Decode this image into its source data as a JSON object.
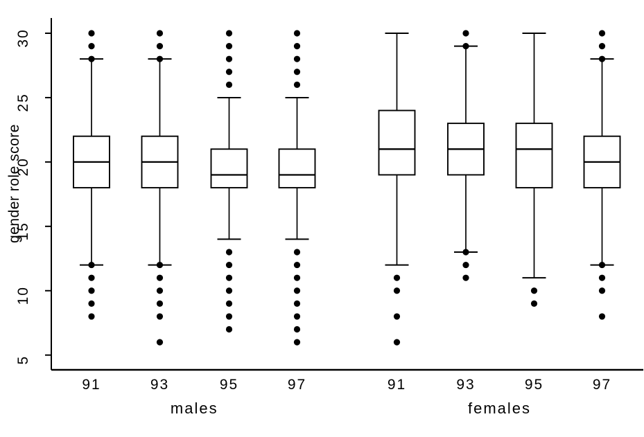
{
  "figure": {
    "ylabel": "gender role score",
    "group_labels": [
      "males",
      "females"
    ]
  },
  "chart_data": {
    "type": "boxplot",
    "title": "",
    "xlabel": "",
    "ylabel": "gender role score",
    "y_ticks": [
      5,
      10,
      15,
      20,
      25,
      30
    ],
    "ylim": [
      3.8,
      31.2
    ],
    "grid": false,
    "legend": "none",
    "colors": {
      "stroke": "#000000",
      "box_fill": "#ffffff",
      "background": "#ffffff"
    },
    "groups": [
      {
        "label": "males",
        "categories": [
          "91",
          "93",
          "95",
          "97"
        ],
        "boxes": [
          {
            "category": "91",
            "whisker_low": 12,
            "q1": 18,
            "median": 20,
            "q3": 22,
            "whisker_high": 28,
            "outliers_low": [
              12,
              11,
              10,
              9,
              8
            ],
            "outliers_high": [
              28,
              29,
              30
            ]
          },
          {
            "category": "93",
            "whisker_low": 12,
            "q1": 18,
            "median": 20,
            "q3": 22,
            "whisker_high": 28,
            "outliers_low": [
              12,
              11,
              10,
              9,
              8,
              6
            ],
            "outliers_high": [
              28,
              29,
              30
            ]
          },
          {
            "category": "95",
            "whisker_low": 14,
            "q1": 18,
            "median": 19,
            "q3": 21,
            "whisker_high": 25,
            "outliers_low": [
              13,
              12,
              11,
              10,
              9,
              8,
              7
            ],
            "outliers_high": [
              26,
              27,
              28,
              29,
              30
            ]
          },
          {
            "category": "97",
            "whisker_low": 14,
            "q1": 18,
            "median": 19,
            "q3": 21,
            "whisker_high": 25,
            "outliers_low": [
              13,
              12,
              11,
              10,
              9,
              8,
              7,
              6
            ],
            "outliers_high": [
              26,
              27,
              28,
              29,
              30
            ]
          }
        ]
      },
      {
        "label": "females",
        "categories": [
          "91",
          "93",
          "95",
          "97"
        ],
        "boxes": [
          {
            "category": "91",
            "whisker_low": 12,
            "q1": 19,
            "median": 21,
            "q3": 24,
            "whisker_high": 30,
            "outliers_low": [
              11,
              10,
              8,
              6
            ],
            "outliers_high": []
          },
          {
            "category": "93",
            "whisker_low": 13,
            "q1": 19,
            "median": 21,
            "q3": 23,
            "whisker_high": 29,
            "outliers_low": [
              13,
              12,
              11
            ],
            "outliers_high": [
              29,
              30
            ]
          },
          {
            "category": "95",
            "whisker_low": 11,
            "q1": 18,
            "median": 21,
            "q3": 23,
            "whisker_high": 30,
            "outliers_low": [
              10,
              9
            ],
            "outliers_high": []
          },
          {
            "category": "97",
            "whisker_low": 12,
            "q1": 18,
            "median": 20,
            "q3": 22,
            "whisker_high": 28,
            "outliers_low": [
              12,
              11,
              10,
              8
            ],
            "outliers_high": [
              28,
              29,
              30
            ]
          }
        ]
      }
    ]
  }
}
